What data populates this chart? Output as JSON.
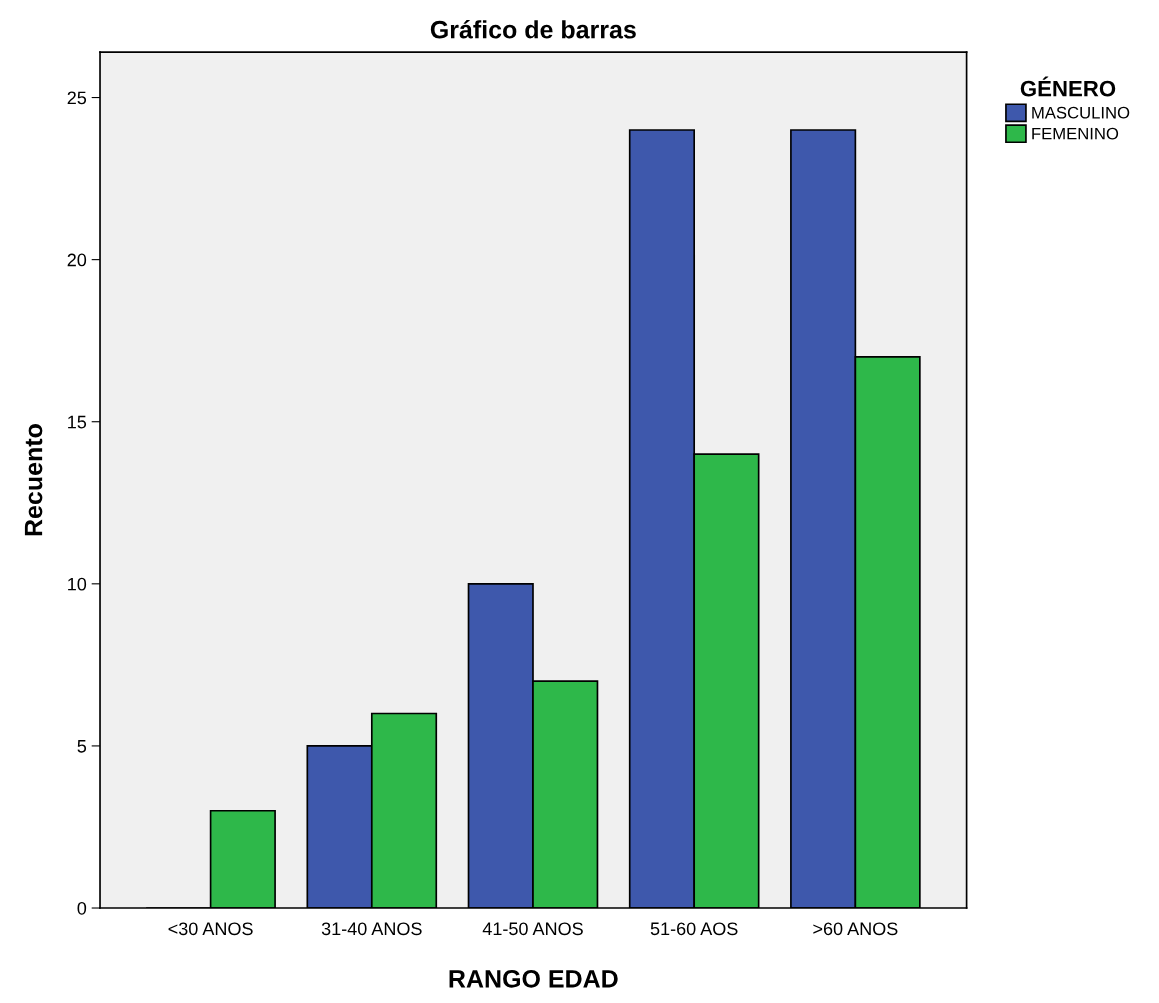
{
  "chart_data": {
    "type": "bar",
    "title": "Gráfico de barras",
    "xlabel": "RANGO EDAD",
    "ylabel": "Recuento",
    "legend_title": "GÉNERO",
    "categories": [
      "<30 ANOS",
      "31-40 ANOS",
      "41-50 ANOS",
      "51-60 AOS",
      ">60 ANOS"
    ],
    "series": [
      {
        "name": "MASCULINO",
        "color": "#3e58ac",
        "values": [
          0,
          5,
          10,
          24,
          24
        ]
      },
      {
        "name": "FEMENINO",
        "color": "#2eb84a",
        "values": [
          3,
          6,
          7,
          14,
          17
        ]
      }
    ],
    "ylim": [
      0,
      26.4
    ],
    "yticks": [
      0,
      5,
      10,
      15,
      20,
      25
    ],
    "grid": false,
    "legend": "top right"
  }
}
